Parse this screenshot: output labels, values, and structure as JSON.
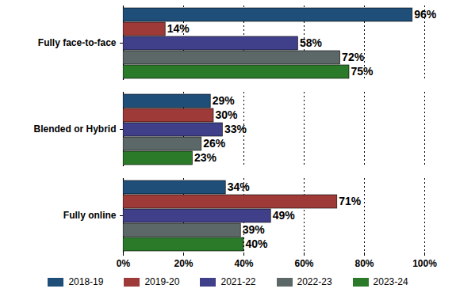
{
  "chart_data": {
    "type": "bar",
    "orientation": "horizontal",
    "categories": [
      "Fully face-to-face",
      "Blended or Hybrid",
      "Fully online"
    ],
    "series": [
      {
        "name": "2018-19",
        "color": "#1f4e79",
        "values": [
          96,
          29,
          34
        ],
        "value_labels": [
          "96%",
          "29%",
          "34%"
        ]
      },
      {
        "name": "2019-20",
        "color": "#9e3a38",
        "values": [
          14,
          30,
          71
        ],
        "value_labels": [
          "14%",
          "30%",
          "71%"
        ]
      },
      {
        "name": "2021-22",
        "color": "#403f8a",
        "values": [
          58,
          33,
          49
        ],
        "value_labels": [
          "58%",
          "33%",
          "49%"
        ]
      },
      {
        "name": "2022-23",
        "color": "#5c6868",
        "values": [
          72,
          26,
          39
        ],
        "value_labels": [
          "72%",
          "26%",
          "39%"
        ]
      },
      {
        "name": "2023-24",
        "color": "#2a7a2a",
        "values": [
          75,
          23,
          40
        ],
        "value_labels": [
          "75%",
          "23%",
          "40%"
        ]
      }
    ],
    "xlim": [
      0,
      100
    ],
    "xticks": [
      {
        "value": 0,
        "label": "0%"
      },
      {
        "value": 20,
        "label": "20%"
      },
      {
        "value": 40,
        "label": "40%"
      },
      {
        "value": 60,
        "label": "60%"
      },
      {
        "value": 80,
        "label": "80%"
      },
      {
        "value": 100,
        "label": "100%"
      }
    ],
    "grid": true,
    "data_labels": true,
    "legend": "bottom"
  }
}
